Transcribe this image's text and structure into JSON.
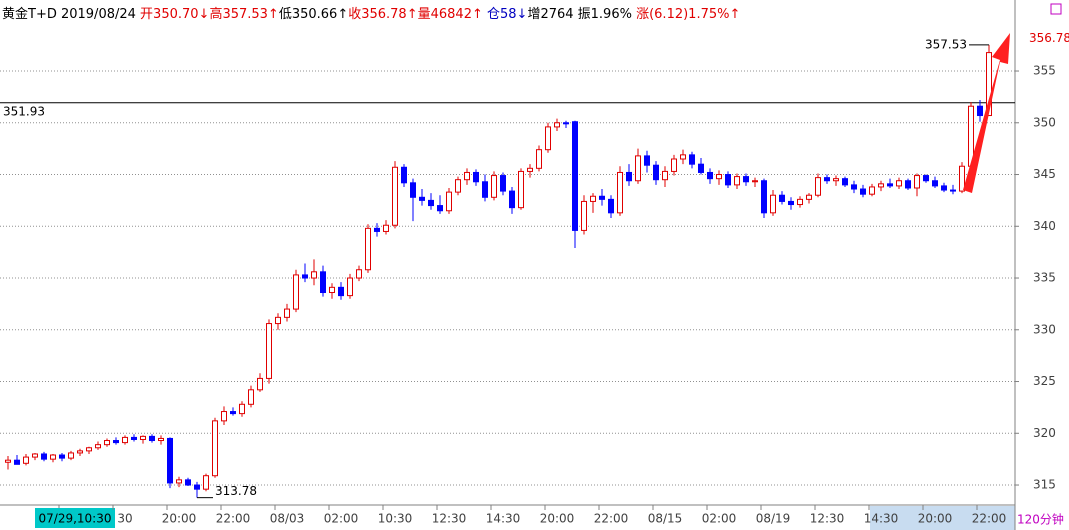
{
  "chart_data": {
    "type": "candlestick",
    "header": [
      {
        "text": "黄金T+D 2019/08/24 ",
        "color": "#000000"
      },
      {
        "text": "开350.70↓",
        "color": "#e00000"
      },
      {
        "text": "高357.53↑",
        "color": "#e00000"
      },
      {
        "text": "低350.66↑",
        "color": "#000000"
      },
      {
        "text": "收356.78↑",
        "color": "#e00000"
      },
      {
        "text": "量46842↑ ",
        "color": "#e00000"
      },
      {
        "text": "仓58↓",
        "color": "#0000c0"
      },
      {
        "text": "增2764 ",
        "color": "#000000"
      },
      {
        "text": "振1.96% ",
        "color": "#000000"
      },
      {
        "text": "涨(6.12)1.75%↑",
        "color": "#e00000"
      }
    ],
    "period_label": "120分钟",
    "up_color": "#e00000",
    "down_color": "#0000ff",
    "ylim": [
      313.07,
      359.93
    ],
    "yticks": [
      315,
      320,
      325,
      330,
      335,
      340,
      345,
      350,
      355
    ],
    "grid": true,
    "reference_line": 351.93,
    "categories": [
      null,
      null,
      null,
      null,
      null,
      null,
      null,
      "07/29,10:30",
      null,
      null,
      null,
      null,
      null,
      "30",
      null,
      null,
      null,
      null,
      null,
      "20:00",
      null,
      null,
      null,
      null,
      null,
      "22:00",
      null,
      null,
      null,
      null,
      null,
      "08/03",
      null,
      null,
      null,
      null,
      null,
      "02:00",
      null,
      null,
      null,
      null,
      null,
      "10:30",
      null,
      null,
      null,
      null,
      null,
      "12:30",
      null,
      null,
      null,
      null,
      null,
      "14:30",
      null,
      null,
      null,
      null,
      null,
      "20:00",
      null,
      null,
      null,
      null,
      null,
      "22:00",
      null,
      null,
      null,
      null,
      null,
      "08/15",
      null,
      null,
      null,
      null,
      null,
      "02:00",
      null,
      null,
      null,
      null,
      null,
      "08/19",
      null,
      null,
      null,
      null,
      null,
      "12:30",
      null,
      null,
      null,
      null,
      null,
      "14:30",
      null,
      null,
      null,
      null,
      null,
      "20:00",
      null,
      null,
      null,
      null,
      null,
      "22:00"
    ],
    "candles": [
      [
        317.2,
        317.8,
        316.5,
        317.4
      ],
      [
        317.4,
        317.9,
        317.0,
        317.0
      ],
      [
        317.1,
        318.0,
        316.9,
        317.7
      ],
      [
        317.7,
        318.1,
        317.4,
        318.0
      ],
      [
        318.0,
        318.2,
        317.3,
        317.5
      ],
      [
        317.5,
        318.0,
        317.2,
        317.9
      ],
      [
        317.9,
        318.1,
        317.3,
        317.6
      ],
      [
        317.6,
        318.3,
        317.4,
        318.1
      ],
      [
        318.1,
        318.5,
        317.8,
        318.3
      ],
      [
        318.3,
        318.7,
        318.0,
        318.6
      ],
      [
        318.6,
        319.2,
        318.4,
        318.9
      ],
      [
        318.9,
        319.5,
        318.7,
        319.3
      ],
      [
        319.3,
        319.6,
        318.9,
        319.1
      ],
      [
        319.1,
        319.8,
        318.9,
        319.6
      ],
      [
        319.6,
        319.9,
        319.2,
        319.4
      ],
      [
        319.4,
        319.8,
        319.0,
        319.7
      ],
      [
        319.7,
        319.9,
        319.1,
        319.3
      ],
      [
        319.3,
        319.8,
        318.9,
        319.5
      ],
      [
        319.5,
        319.6,
        314.7,
        315.2
      ],
      [
        315.2,
        315.8,
        314.8,
        315.5
      ],
      [
        315.5,
        315.7,
        314.9,
        315.0
      ],
      [
        315.0,
        315.3,
        313.78,
        314.6
      ],
      [
        314.6,
        316.1,
        314.4,
        315.9
      ],
      [
        315.9,
        321.5,
        315.7,
        321.2
      ],
      [
        321.2,
        322.6,
        320.8,
        322.1
      ],
      [
        322.1,
        322.5,
        321.7,
        321.9
      ],
      [
        321.9,
        323.1,
        321.6,
        322.8
      ],
      [
        322.8,
        324.6,
        322.5,
        324.2
      ],
      [
        324.2,
        325.8,
        324.0,
        325.3
      ],
      [
        325.3,
        331.0,
        324.8,
        330.6
      ],
      [
        330.6,
        331.6,
        330.0,
        331.2
      ],
      [
        331.2,
        332.5,
        330.8,
        332.0
      ],
      [
        332.0,
        335.8,
        331.7,
        335.3
      ],
      [
        335.3,
        336.4,
        334.6,
        335.0
      ],
      [
        335.0,
        336.8,
        334.3,
        335.6
      ],
      [
        335.6,
        336.2,
        333.2,
        333.6
      ],
      [
        333.6,
        334.5,
        333.0,
        334.1
      ],
      [
        334.1,
        334.6,
        332.9,
        333.3
      ],
      [
        333.3,
        335.4,
        333.0,
        335.0
      ],
      [
        335.0,
        336.2,
        334.7,
        335.8
      ],
      [
        335.8,
        340.2,
        335.5,
        339.8
      ],
      [
        339.8,
        340.3,
        339.0,
        339.5
      ],
      [
        339.5,
        340.6,
        339.2,
        340.1
      ],
      [
        340.1,
        346.3,
        339.8,
        345.7
      ],
      [
        345.7,
        346.0,
        343.8,
        344.2
      ],
      [
        344.2,
        344.6,
        340.5,
        342.8
      ],
      [
        342.8,
        343.6,
        342.0,
        342.5
      ],
      [
        342.5,
        343.2,
        341.6,
        342.0
      ],
      [
        342.0,
        343.0,
        341.2,
        341.5
      ],
      [
        341.5,
        343.7,
        341.2,
        343.3
      ],
      [
        343.3,
        344.8,
        343.0,
        344.5
      ],
      [
        344.5,
        345.6,
        344.0,
        345.2
      ],
      [
        345.2,
        345.5,
        343.9,
        344.3
      ],
      [
        344.3,
        345.0,
        342.4,
        342.8
      ],
      [
        342.8,
        345.3,
        342.5,
        344.9
      ],
      [
        344.9,
        345.2,
        343.0,
        343.4
      ],
      [
        343.4,
        343.8,
        341.2,
        341.8
      ],
      [
        341.8,
        345.6,
        341.6,
        345.3
      ],
      [
        345.3,
        346.0,
        344.7,
        345.6
      ],
      [
        345.6,
        347.8,
        345.3,
        347.4
      ],
      [
        347.4,
        350.0,
        347.1,
        349.6
      ],
      [
        349.6,
        350.4,
        349.2,
        350.0
      ],
      [
        350.0,
        350.2,
        349.5,
        349.9
      ],
      [
        350.1,
        350.2,
        337.9,
        339.6
      ],
      [
        339.6,
        343.0,
        339.2,
        342.4
      ],
      [
        342.4,
        343.2,
        341.3,
        342.9
      ],
      [
        342.9,
        343.6,
        342.0,
        342.6
      ],
      [
        342.6,
        343.0,
        340.8,
        341.3
      ],
      [
        341.3,
        345.8,
        341.0,
        345.2
      ],
      [
        345.2,
        346.0,
        343.9,
        344.4
      ],
      [
        344.4,
        347.5,
        344.1,
        346.8
      ],
      [
        346.8,
        347.3,
        345.2,
        345.9
      ],
      [
        345.9,
        346.3,
        344.0,
        344.5
      ],
      [
        344.5,
        345.8,
        343.8,
        345.3
      ],
      [
        345.3,
        346.9,
        344.9,
        346.5
      ],
      [
        346.5,
        347.4,
        346.0,
        346.9
      ],
      [
        346.9,
        347.2,
        345.6,
        346.0
      ],
      [
        346.0,
        346.6,
        345.0,
        345.2
      ],
      [
        345.2,
        345.6,
        344.1,
        344.6
      ],
      [
        344.6,
        345.4,
        344.0,
        345.0
      ],
      [
        345.0,
        345.3,
        343.7,
        344.0
      ],
      [
        344.0,
        345.1,
        343.6,
        344.8
      ],
      [
        344.8,
        345.1,
        343.9,
        344.3
      ],
      [
        344.3,
        344.7,
        343.8,
        344.4
      ],
      [
        344.4,
        344.6,
        340.8,
        341.3
      ],
      [
        341.3,
        343.5,
        341.0,
        343.0
      ],
      [
        343.0,
        343.4,
        342.1,
        342.4
      ],
      [
        342.4,
        342.8,
        341.6,
        342.1
      ],
      [
        342.1,
        342.9,
        341.8,
        342.6
      ],
      [
        342.6,
        343.2,
        342.2,
        343.0
      ],
      [
        343.0,
        345.1,
        342.8,
        344.7
      ],
      [
        344.7,
        345.0,
        344.1,
        344.4
      ],
      [
        344.4,
        344.9,
        343.9,
        344.6
      ],
      [
        344.6,
        344.8,
        343.8,
        344.0
      ],
      [
        344.0,
        344.4,
        343.2,
        343.6
      ],
      [
        343.6,
        344.0,
        342.8,
        343.1
      ],
      [
        343.1,
        344.1,
        342.9,
        343.8
      ],
      [
        343.8,
        344.4,
        343.4,
        344.1
      ],
      [
        344.1,
        344.6,
        343.7,
        343.9
      ],
      [
        343.9,
        344.7,
        343.6,
        344.4
      ],
      [
        344.4,
        344.6,
        343.5,
        343.7
      ],
      [
        343.7,
        345.1,
        342.9,
        344.9
      ],
      [
        344.9,
        345.0,
        344.2,
        344.4
      ],
      [
        344.4,
        344.8,
        343.7,
        343.9
      ],
      [
        343.9,
        344.2,
        343.3,
        343.5
      ],
      [
        343.5,
        344.0,
        343.1,
        343.4
      ],
      [
        343.4,
        346.2,
        343.2,
        345.8
      ],
      [
        345.8,
        352.0,
        345.5,
        351.6
      ],
      [
        351.6,
        352.2,
        350.1,
        350.7
      ],
      [
        350.7,
        357.53,
        350.66,
        356.78
      ]
    ]
  }
}
